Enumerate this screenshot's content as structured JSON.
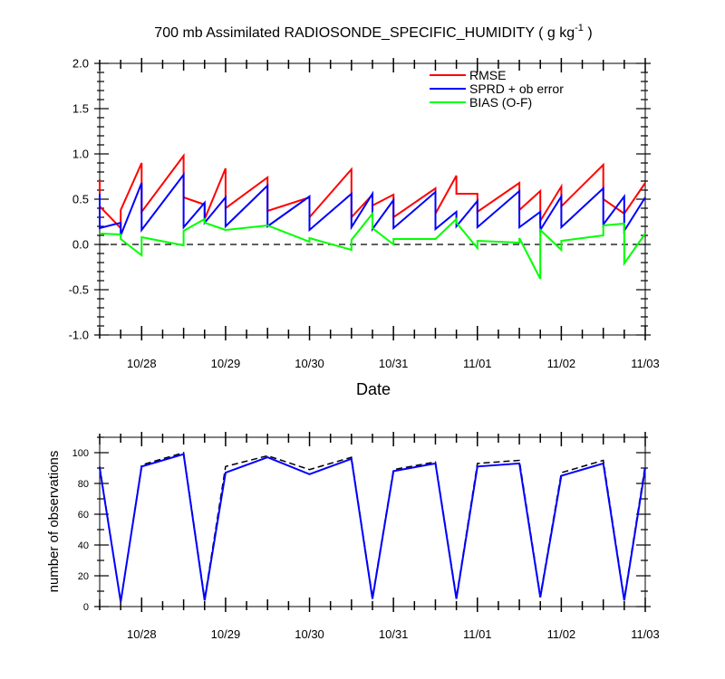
{
  "title": "700 mb Assimilated RADIOSONDE_SPECIFIC_HUMIDITY ( g kg",
  "title_exponent": "-1",
  "title_suffix": " )",
  "colors": {
    "rmse": "#ff0000",
    "sprd": "#0000ff",
    "bias": "#00ff00",
    "axis": "#000000",
    "obs_possible": "#000000",
    "obs_used": "#0000ff"
  },
  "chart_data": [
    {
      "type": "line",
      "title": "700 mb Assimilated RADIOSONDE_SPECIFIC_HUMIDITY ( g kg-1 )",
      "xlabel": "Date",
      "ylabel": "",
      "xlim": [
        "10/27 12Z",
        "11/03 00Z"
      ],
      "ylim": [
        -1.0,
        2.0
      ],
      "yticks": [
        "2.0",
        "1.5",
        "1.0",
        "0.5",
        "0.0",
        "-0.5",
        "-1.0"
      ],
      "xticks": [
        "10/28",
        "10/29",
        "10/30",
        "10/31",
        "11/01",
        "11/02",
        "11/03"
      ],
      "x_unit": "days since 10/27 00Z (data x in days)",
      "reference_line": {
        "y": 0.0,
        "style": "dashed"
      },
      "legend": [
        "RMSE",
        "SPRD + ob error",
        "BIAS (O-F)"
      ],
      "legend_position": "top-right",
      "series": [
        {
          "name": "RMSE",
          "points": [
            [
              0.5,
              0.72
            ],
            [
              0.5,
              0.42
            ],
            [
              0.75,
              0.18
            ],
            [
              0.75,
              0.38
            ],
            [
              1.0,
              0.9
            ],
            [
              1.0,
              0.36
            ],
            [
              1.5,
              0.98
            ],
            [
              1.5,
              0.52
            ],
            [
              1.75,
              0.44
            ],
            [
              1.75,
              0.28
            ],
            [
              2.0,
              0.84
            ],
            [
              2.0,
              0.4
            ],
            [
              2.5,
              0.74
            ],
            [
              2.5,
              0.37
            ],
            [
              3.0,
              0.52
            ],
            [
              3.0,
              0.3
            ],
            [
              3.5,
              0.83
            ],
            [
              3.5,
              0.3
            ],
            [
              3.75,
              0.55
            ],
            [
              3.75,
              0.43
            ],
            [
              4.0,
              0.55
            ],
            [
              4.0,
              0.3
            ],
            [
              4.5,
              0.62
            ],
            [
              4.5,
              0.34
            ],
            [
              4.75,
              0.76
            ],
            [
              4.75,
              0.56
            ],
            [
              5.0,
              0.56
            ],
            [
              5.0,
              0.36
            ],
            [
              5.5,
              0.68
            ],
            [
              5.5,
              0.38
            ],
            [
              5.75,
              0.59
            ],
            [
              5.75,
              0.26
            ],
            [
              6.0,
              0.64
            ],
            [
              6.0,
              0.42
            ],
            [
              6.5,
              0.88
            ],
            [
              6.5,
              0.5
            ],
            [
              6.75,
              0.34
            ],
            [
              7.0,
              0.68
            ]
          ]
        },
        {
          "name": "SPRD + ob error",
          "points": [
            [
              0.5,
              0.56
            ],
            [
              0.5,
              0.18
            ],
            [
              0.75,
              0.24
            ],
            [
              0.75,
              0.1
            ],
            [
              1.0,
              0.68
            ],
            [
              1.0,
              0.16
            ],
            [
              1.5,
              0.77
            ],
            [
              1.5,
              0.19
            ],
            [
              1.75,
              0.46
            ],
            [
              1.75,
              0.4
            ],
            [
              1.75,
              0.24
            ],
            [
              2.0,
              0.52
            ],
            [
              2.0,
              0.2
            ],
            [
              2.5,
              0.65
            ],
            [
              2.5,
              0.2
            ],
            [
              3.0,
              0.53
            ],
            [
              3.0,
              0.16
            ],
            [
              3.5,
              0.56
            ],
            [
              3.5,
              0.19
            ],
            [
              3.75,
              0.56
            ],
            [
              3.75,
              0.17
            ],
            [
              4.0,
              0.49
            ],
            [
              4.0,
              0.18
            ],
            [
              4.5,
              0.58
            ],
            [
              4.5,
              0.17
            ],
            [
              4.75,
              0.36
            ],
            [
              4.75,
              0.2
            ],
            [
              5.0,
              0.48
            ],
            [
              5.0,
              0.19
            ],
            [
              5.5,
              0.59
            ],
            [
              5.5,
              0.19
            ],
            [
              5.75,
              0.36
            ],
            [
              5.75,
              0.16
            ],
            [
              6.0,
              0.53
            ],
            [
              6.0,
              0.19
            ],
            [
              6.5,
              0.62
            ],
            [
              6.5,
              0.22
            ],
            [
              6.75,
              0.53
            ],
            [
              6.75,
              0.15
            ],
            [
              7.0,
              0.52
            ]
          ]
        },
        {
          "name": "BIAS (O-F)",
          "points": [
            [
              0.5,
              0.12
            ],
            [
              0.75,
              0.11
            ],
            [
              0.75,
              0.06
            ],
            [
              1.0,
              -0.12
            ],
            [
              1.0,
              0.08
            ],
            [
              1.5,
              -0.01
            ],
            [
              1.5,
              0.15
            ],
            [
              1.75,
              0.28
            ],
            [
              1.75,
              0.24
            ],
            [
              2.0,
              0.16
            ],
            [
              2.5,
              0.21
            ],
            [
              3.0,
              0.03
            ],
            [
              3.0,
              0.07
            ],
            [
              3.5,
              -0.06
            ],
            [
              3.5,
              0.05
            ],
            [
              3.75,
              0.34
            ],
            [
              3.75,
              0.18
            ],
            [
              4.0,
              0.0
            ],
            [
              4.0,
              0.06
            ],
            [
              4.5,
              0.06
            ],
            [
              4.75,
              0.28
            ],
            [
              4.75,
              0.24
            ],
            [
              5.0,
              -0.04
            ],
            [
              5.0,
              0.04
            ],
            [
              5.5,
              0.02
            ],
            [
              5.5,
              0.07
            ],
            [
              5.75,
              -0.38
            ],
            [
              5.75,
              0.16
            ],
            [
              6.0,
              -0.06
            ],
            [
              6.0,
              0.04
            ],
            [
              6.5,
              0.1
            ],
            [
              6.5,
              0.21
            ],
            [
              6.75,
              0.23
            ],
            [
              6.75,
              -0.21
            ],
            [
              7.0,
              0.12
            ]
          ]
        }
      ]
    },
    {
      "type": "line",
      "title": "",
      "xlabel": "",
      "ylabel": "number of observations",
      "xlim": [
        "10/27 12Z",
        "11/03 00Z"
      ],
      "ylim": [
        0,
        110
      ],
      "yticks": [
        "100",
        "80",
        "60",
        "40",
        "20",
        "0"
      ],
      "xticks": [
        "10/28",
        "10/29",
        "10/30",
        "10/31",
        "11/01",
        "11/02",
        "11/03"
      ],
      "x_unit": "days since 10/27 00Z (data x in days)",
      "legend": [],
      "series": [
        {
          "name": "obs possible",
          "style": "dashed",
          "points": [
            [
              0.5,
              91
            ],
            [
              0.75,
              3
            ],
            [
              1.0,
              92
            ],
            [
              1.5,
              100
            ],
            [
              1.75,
              5
            ],
            [
              2.0,
              91
            ],
            [
              2.5,
              98
            ],
            [
              3.0,
              89
            ],
            [
              3.5,
              97
            ],
            [
              3.75,
              6
            ],
            [
              4.0,
              89
            ],
            [
              4.5,
              94
            ],
            [
              4.75,
              6
            ],
            [
              5.0,
              93
            ],
            [
              5.5,
              95
            ],
            [
              5.75,
              7
            ],
            [
              6.0,
              87
            ],
            [
              6.5,
              95
            ],
            [
              6.75,
              5
            ],
            [
              7.0,
              92
            ]
          ]
        },
        {
          "name": "obs used",
          "style": "solid",
          "points": [
            [
              0.5,
              90
            ],
            [
              0.75,
              3
            ],
            [
              1.0,
              91
            ],
            [
              1.5,
              99
            ],
            [
              1.75,
              4
            ],
            [
              2.0,
              87
            ],
            [
              2.5,
              97
            ],
            [
              3.0,
              86
            ],
            [
              3.5,
              96
            ],
            [
              3.75,
              5
            ],
            [
              4.0,
              88
            ],
            [
              4.5,
              93
            ],
            [
              4.75,
              5
            ],
            [
              5.0,
              91
            ],
            [
              5.5,
              93
            ],
            [
              5.75,
              6
            ],
            [
              6.0,
              85
            ],
            [
              6.5,
              93
            ],
            [
              6.75,
              4
            ],
            [
              7.0,
              90
            ]
          ]
        }
      ]
    }
  ]
}
